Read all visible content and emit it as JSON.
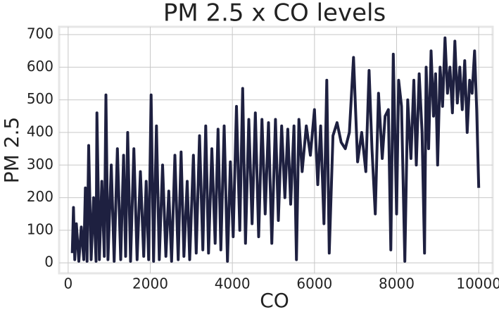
{
  "chart_data": {
    "type": "line",
    "title": "PM 2.5 x CO levels",
    "x_label": "CO",
    "y_label": "PM 2.5",
    "color": "#1e2040",
    "grid": true,
    "xlim": [
      -220,
      10340
    ],
    "ylim": [
      -32,
      724
    ],
    "xticks": [
      0,
      2000,
      4000,
      6000,
      8000,
      10000
    ],
    "yticks": [
      0,
      100,
      200,
      300,
      400,
      500,
      600,
      700
    ],
    "x": [
      100,
      130,
      160,
      200,
      260,
      320,
      380,
      420,
      460,
      500,
      560,
      620,
      680,
      700,
      760,
      820,
      880,
      920,
      970,
      1050,
      1120,
      1200,
      1280,
      1350,
      1400,
      1450,
      1520,
      1600,
      1680,
      1760,
      1840,
      1900,
      1960,
      2020,
      2080,
      2150,
      2220,
      2300,
      2380,
      2450,
      2520,
      2600,
      2680,
      2750,
      2820,
      2900,
      2960,
      3050,
      3120,
      3200,
      3280,
      3350,
      3420,
      3500,
      3580,
      3650,
      3720,
      3800,
      3880,
      3950,
      4020,
      4100,
      4180,
      4250,
      4320,
      4400,
      4480,
      4560,
      4640,
      4720,
      4800,
      4880,
      4960,
      5050,
      5120,
      5200,
      5280,
      5350,
      5420,
      5500,
      5560,
      5620,
      5700,
      5800,
      5900,
      6000,
      6080,
      6150,
      6230,
      6300,
      6360,
      6450,
      6550,
      6650,
      6750,
      6850,
      6950,
      7050,
      7150,
      7250,
      7330,
      7400,
      7480,
      7560,
      7650,
      7720,
      7800,
      7860,
      7920,
      8000,
      8050,
      8120,
      8200,
      8270,
      8350,
      8420,
      8480,
      8550,
      8620,
      8680,
      8720,
      8780,
      8840,
      8900,
      8950,
      9000,
      9060,
      9120,
      9180,
      9240,
      9300,
      9360,
      9420,
      9480,
      9540,
      9600,
      9660,
      9720,
      9780,
      9840,
      9900,
      9950,
      10000
    ],
    "values": [
      30,
      170,
      10,
      120,
      5,
      110,
      10,
      230,
      5,
      360,
      10,
      200,
      5,
      460,
      10,
      250,
      20,
      515,
      10,
      300,
      5,
      350,
      10,
      330,
      20,
      400,
      5,
      350,
      10,
      280,
      20,
      250,
      10,
      515,
      5,
      420,
      10,
      300,
      20,
      220,
      5,
      330,
      10,
      340,
      20,
      250,
      10,
      330,
      30,
      390,
      40,
      420,
      30,
      350,
      60,
      410,
      40,
      420,
      5,
      310,
      80,
      480,
      100,
      535,
      60,
      440,
      120,
      460,
      80,
      440,
      150,
      430,
      60,
      440,
      130,
      420,
      200,
      410,
      180,
      420,
      10,
      440,
      280,
      420,
      330,
      470,
      240,
      420,
      120,
      560,
      30,
      390,
      430,
      370,
      350,
      400,
      630,
      310,
      400,
      280,
      590,
      350,
      150,
      520,
      320,
      450,
      470,
      40,
      640,
      150,
      560,
      480,
      5,
      500,
      320,
      560,
      300,
      580,
      400,
      30,
      600,
      350,
      650,
      450,
      580,
      300,
      600,
      480,
      690,
      520,
      600,
      460,
      680,
      490,
      600,
      470,
      620,
      400,
      560,
      520,
      650,
      470,
      230
    ]
  }
}
